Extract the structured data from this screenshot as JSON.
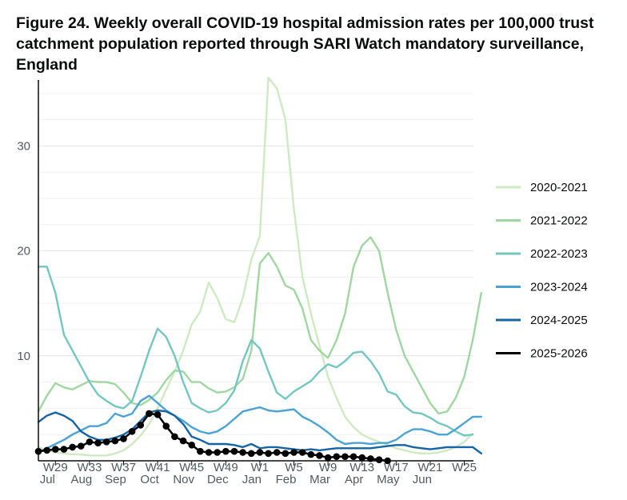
{
  "figure": {
    "title": "Figure 24. Weekly overall COVID-19 hospital admission rates per 100,000 trust catchment population reported through SARI Watch mandatory surveillance, England"
  },
  "chart_data": {
    "type": "line",
    "title": "Figure 24. Weekly overall COVID-19 hospital admission rates per 100,000 trust catchment population reported through SARI Watch mandatory surveillance, England",
    "xlabel": "",
    "ylabel": "",
    "ylim": [
      0,
      36
    ],
    "y_ticks": [
      10,
      20,
      30
    ],
    "x_season_weeks": [
      27,
      28,
      29,
      30,
      31,
      32,
      33,
      34,
      35,
      36,
      37,
      38,
      39,
      40,
      41,
      42,
      43,
      44,
      45,
      46,
      47,
      48,
      49,
      50,
      51,
      52,
      1,
      2,
      3,
      4,
      5,
      6,
      7,
      8,
      9,
      10,
      11,
      12,
      13,
      14,
      15,
      16,
      17,
      18,
      19,
      20,
      21,
      22,
      23,
      24,
      25,
      26
    ],
    "x_ticks": [
      {
        "index": 2,
        "week": "W29",
        "month": "Jul"
      },
      {
        "index": 6,
        "week": "W33",
        "month": "Aug"
      },
      {
        "index": 10,
        "week": "W37",
        "month": "Sep"
      },
      {
        "index": 14,
        "week": "W41",
        "month": "Oct"
      },
      {
        "index": 18,
        "week": "W45",
        "month": "Nov"
      },
      {
        "index": 22,
        "week": "W49",
        "month": "Dec"
      },
      {
        "index": 26,
        "week": "W1",
        "month": "Jan"
      },
      {
        "index": 30,
        "week": "W5",
        "month": "Feb"
      },
      {
        "index": 34,
        "week": "W9",
        "month": "Mar"
      },
      {
        "index": 38,
        "week": "W13",
        "month": "Apr"
      },
      {
        "index": 42,
        "week": "W17",
        "month": "May"
      },
      {
        "index": 46,
        "week": "W21",
        "month": "Jun"
      },
      {
        "index": 50,
        "week": "W25",
        "month": ""
      }
    ],
    "grid": true,
    "legend_position": "right",
    "series": [
      {
        "name": "2020-2021",
        "color": "#cfe9c2",
        "markers": false,
        "values": [
          1.3,
          1.0,
          0.8,
          0.7,
          0.6,
          0.6,
          0.5,
          0.5,
          0.5,
          0.7,
          1.0,
          1.6,
          2.4,
          3.5,
          5.0,
          6.8,
          8.5,
          10.5,
          13.0,
          14.2,
          17.0,
          15.5,
          13.5,
          13.2,
          15.5,
          19.2,
          21.4,
          36.5,
          35.5,
          32.5,
          24.0,
          17.5,
          14.0,
          11.0,
          8.0,
          6.0,
          4.2,
          3.2,
          2.5,
          2.1,
          1.8,
          1.5,
          1.2,
          1.0,
          0.8,
          0.7,
          0.7,
          0.8,
          1.0,
          1.3,
          1.8,
          2.6
        ]
      },
      {
        "name": "2021-2022",
        "color": "#a0d7a1",
        "markers": false,
        "values": [
          4.7,
          6.2,
          7.4,
          7.0,
          6.8,
          7.2,
          7.6,
          7.5,
          7.5,
          7.3,
          6.5,
          5.5,
          5.3,
          5.8,
          6.5,
          7.7,
          8.6,
          8.5,
          7.5,
          7.5,
          6.9,
          6.5,
          6.6,
          7.0,
          7.8,
          10.5,
          18.8,
          19.8,
          18.5,
          16.7,
          16.3,
          14.5,
          11.5,
          10.5,
          9.8,
          11.5,
          14.0,
          18.5,
          20.5,
          21.3,
          20.0,
          16.0,
          12.5,
          10.0,
          8.5,
          7.0,
          5.5,
          4.5,
          4.7,
          6.0,
          8.0,
          11.5,
          16.0
        ]
      },
      {
        "name": "2022-2023",
        "color": "#74c7c0",
        "markers": false,
        "values": [
          18.5,
          18.5,
          16.0,
          12.0,
          10.5,
          9.0,
          7.5,
          6.3,
          5.7,
          5.2,
          5.0,
          5.7,
          8.0,
          10.5,
          12.6,
          11.8,
          10.0,
          7.5,
          5.5,
          5.0,
          4.6,
          4.8,
          5.5,
          6.7,
          9.5,
          11.5,
          10.7,
          8.5,
          6.5,
          5.9,
          6.6,
          7.1,
          7.6,
          8.5,
          9.2,
          8.9,
          9.5,
          10.3,
          10.4,
          9.5,
          8.3,
          6.6,
          6.3,
          5.2,
          4.6,
          4.5,
          4.1,
          3.6,
          3.3,
          2.8,
          2.4,
          2.5
        ]
      },
      {
        "name": "2023-2024",
        "color": "#4aa3d4",
        "markers": false,
        "values": [
          0.8,
          1.2,
          1.6,
          2.0,
          2.5,
          2.9,
          3.3,
          3.3,
          3.6,
          4.5,
          4.2,
          4.5,
          5.7,
          6.2,
          5.5,
          4.8,
          4.3,
          3.8,
          3.2,
          2.8,
          2.6,
          2.8,
          3.3,
          4.0,
          4.7,
          4.9,
          5.1,
          4.8,
          4.7,
          4.8,
          4.9,
          4.2,
          3.8,
          3.3,
          2.7,
          2.0,
          1.6,
          1.7,
          1.7,
          1.6,
          1.7,
          1.7,
          2.0,
          2.6,
          3.0,
          3.0,
          2.8,
          2.5,
          2.5,
          3.0,
          3.6,
          4.2,
          4.2
        ]
      },
      {
        "name": "2024-2025",
        "color": "#1565a4",
        "markers": false,
        "values": [
          3.7,
          4.3,
          4.6,
          4.3,
          3.8,
          2.8,
          2.3,
          2.0,
          2.0,
          2.2,
          2.5,
          3.0,
          3.8,
          4.6,
          4.8,
          4.7,
          4.3,
          3.5,
          2.3,
          2.0,
          1.6,
          1.6,
          1.6,
          1.5,
          1.3,
          1.6,
          1.2,
          1.3,
          1.3,
          1.2,
          1.1,
          1.0,
          1.1,
          1.0,
          1.1,
          1.2,
          1.2,
          1.2,
          1.2,
          1.2,
          1.3,
          1.4,
          1.5,
          1.5,
          1.3,
          1.2,
          1.1,
          1.2,
          1.3,
          1.3,
          1.3,
          1.3,
          0.7
        ]
      },
      {
        "name": "2025-2026",
        "color": "#000000",
        "markers": true,
        "values": [
          0.9,
          1.0,
          1.1,
          1.1,
          1.3,
          1.4,
          1.8,
          1.7,
          1.8,
          1.9,
          2.1,
          2.8,
          3.4,
          4.5,
          4.4,
          3.3,
          2.3,
          1.9,
          1.5,
          0.9,
          0.8,
          0.8,
          0.9,
          0.9,
          0.8,
          0.7,
          0.8,
          0.7,
          0.8,
          0.7,
          0.8,
          0.8,
          0.6,
          0.5,
          0.3,
          0.4,
          0.4,
          0.4,
          0.3,
          0.2,
          0.1,
          0.0
        ]
      }
    ]
  }
}
